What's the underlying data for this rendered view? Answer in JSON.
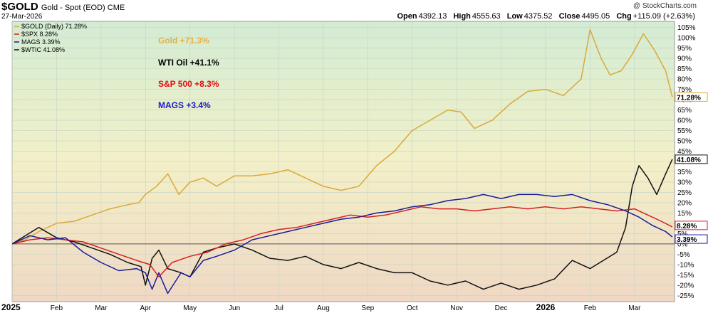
{
  "header": {
    "symbol": "$GOLD",
    "description": "Gold - Spot (EOD)",
    "exchange": "CME",
    "date": "27-Mar-2026",
    "watermark": "@ StockCharts.com",
    "ohlc": {
      "open_label": "Open",
      "open": "4392.13",
      "high_label": "High",
      "high": "4555.63",
      "low_label": "Low",
      "low": "4375.52",
      "close_label": "Close",
      "close": "4495.05",
      "chg_label": "Chg",
      "chg": "+115.09 (+2.63%)"
    }
  },
  "chart_data": {
    "type": "line",
    "ylabel_unit": "%",
    "ylim": [
      -28,
      108
    ],
    "y_ticks": [
      "105%",
      "100%",
      "95%",
      "90%",
      "85%",
      "80%",
      "75%",
      "70%",
      "65%",
      "60%",
      "55%",
      "50%",
      "45%",
      "40%",
      "35%",
      "30%",
      "25%",
      "20%",
      "15%",
      "10%",
      "5%",
      "0%",
      "-5%",
      "-10%",
      "-15%",
      "-20%",
      "-25%"
    ],
    "x_ticks": [
      "2025",
      "Feb",
      "Mar",
      "Apr",
      "May",
      "Jun",
      "Jul",
      "Aug",
      "Sep",
      "Oct",
      "Nov",
      "Dec",
      "2026",
      "Feb",
      "Mar"
    ],
    "x_tick_months": [
      0,
      1,
      2,
      3,
      4,
      5,
      6,
      7,
      8,
      9,
      10,
      11,
      12,
      13,
      14
    ],
    "x_range_months": [
      0,
      14.9
    ],
    "legend": {
      "placement": "top-left",
      "items": [
        {
          "label": "$GOLD (Daily) 71.28%",
          "color": "#d9a93c"
        },
        {
          "label": "$SPX 8.28%",
          "color": "#d62020"
        },
        {
          "label": "MAGS 3.39%",
          "color": "#1a1a9a"
        },
        {
          "label": "$WTIC 41.08%",
          "color": "#111111"
        }
      ]
    },
    "annotations": [
      {
        "text": "Gold +71.3%",
        "color": "#e4b04a"
      },
      {
        "text": "WTI Oil +41.1%",
        "color": "#000000"
      },
      {
        "text": "S&P 500 +8.3%",
        "color": "#e01010"
      },
      {
        "text": "MAGS +3.4%",
        "color": "#1a1acc"
      }
    ],
    "end_labels": [
      {
        "text": "71.28%",
        "value": 71.28,
        "color": "#d9a93c"
      },
      {
        "text": "41.08%",
        "value": 41.08,
        "color": "#111111"
      },
      {
        "text": "8.28%",
        "value": 8.28,
        "color": "#d62020"
      },
      {
        "text": "3.39%",
        "value": 3.39,
        "color": "#1a1a9a"
      }
    ],
    "zero_line": true,
    "grid": true,
    "series": [
      {
        "name": "$GOLD",
        "color": "#d9a93c",
        "x": [
          0,
          0.3,
          0.6,
          1.0,
          1.4,
          1.8,
          2.2,
          2.6,
          2.85,
          3.0,
          3.25,
          3.5,
          3.75,
          4.0,
          4.3,
          4.6,
          5.0,
          5.4,
          5.8,
          6.2,
          6.6,
          7.0,
          7.4,
          7.8,
          8.2,
          8.6,
          9.0,
          9.4,
          9.8,
          10.1,
          10.4,
          10.8,
          11.2,
          11.6,
          12.0,
          12.4,
          12.8,
          13.0,
          13.25,
          13.45,
          13.7,
          13.95,
          14.2,
          14.45,
          14.7,
          14.85
        ],
        "y": [
          0,
          2,
          6,
          10,
          11,
          14,
          17,
          19,
          20,
          24,
          28,
          34,
          24,
          30,
          32,
          28,
          33,
          33,
          34,
          36,
          32,
          28,
          26,
          28,
          38,
          45,
          55,
          60,
          65,
          64,
          56,
          60,
          68,
          74,
          75,
          72,
          80,
          104,
          90,
          82,
          84,
          92,
          102,
          94,
          84,
          71.28
        ]
      },
      {
        "name": "$SPX",
        "color": "#d62020",
        "x": [
          0,
          0.4,
          0.8,
          1.2,
          1.6,
          2.0,
          2.4,
          2.8,
          3.1,
          3.3,
          3.6,
          4.0,
          4.4,
          4.8,
          5.2,
          5.6,
          6.0,
          6.4,
          6.8,
          7.2,
          7.6,
          8.0,
          8.4,
          8.8,
          9.2,
          9.6,
          10.0,
          10.4,
          10.8,
          11.2,
          11.6,
          12.0,
          12.4,
          12.8,
          13.2,
          13.6,
          14.0,
          14.3,
          14.6,
          14.85
        ],
        "y": [
          0,
          2,
          3,
          2,
          1,
          -2,
          -5,
          -8,
          -10,
          -16,
          -9,
          -6,
          -4,
          0,
          2,
          5,
          7,
          8,
          10,
          12,
          14,
          13,
          14,
          16,
          18,
          17,
          17,
          16,
          17,
          18,
          17,
          18,
          17,
          18,
          17,
          16,
          17,
          14,
          11,
          8.28
        ]
      },
      {
        "name": "MAGS",
        "color": "#1a1a9a",
        "x": [
          0,
          0.4,
          0.8,
          1.2,
          1.6,
          2.0,
          2.4,
          2.8,
          3.0,
          3.15,
          3.3,
          3.5,
          3.8,
          4.0,
          4.3,
          4.6,
          5.0,
          5.4,
          5.8,
          6.2,
          6.6,
          7.0,
          7.4,
          7.8,
          8.2,
          8.6,
          9.0,
          9.4,
          9.8,
          10.2,
          10.6,
          11.0,
          11.4,
          11.8,
          12.2,
          12.6,
          13.0,
          13.4,
          13.8,
          14.1,
          14.4,
          14.7,
          14.85
        ],
        "y": [
          0,
          4,
          2,
          3,
          -4,
          -9,
          -13,
          -12,
          -14,
          -22,
          -14,
          -24,
          -14,
          -16,
          -8,
          -6,
          -3,
          2,
          4,
          6,
          8,
          10,
          12,
          13,
          15,
          16,
          18,
          19,
          21,
          22,
          24,
          22,
          24,
          24,
          23,
          24,
          21,
          19,
          16,
          13,
          9,
          6,
          3.39
        ]
      },
      {
        "name": "$WTIC",
        "color": "#111111",
        "x": [
          0,
          0.3,
          0.6,
          1.0,
          1.4,
          1.8,
          2.2,
          2.6,
          2.9,
          3.0,
          3.15,
          3.3,
          3.5,
          3.8,
          4.0,
          4.3,
          4.6,
          5.0,
          5.4,
          5.8,
          6.2,
          6.6,
          7.0,
          7.4,
          7.8,
          8.2,
          8.6,
          9.0,
          9.4,
          9.8,
          10.2,
          10.6,
          11.0,
          11.4,
          11.8,
          12.2,
          12.6,
          13.0,
          13.3,
          13.6,
          13.8,
          13.95,
          14.1,
          14.3,
          14.5,
          14.7,
          14.85
        ],
        "y": [
          0,
          4,
          8,
          3,
          1,
          -2,
          -5,
          -9,
          -11,
          -20,
          -7,
          -3,
          -12,
          -14,
          -16,
          -4,
          -2,
          0,
          -3,
          -7,
          -8,
          -6,
          -10,
          -12,
          -9,
          -12,
          -14,
          -14,
          -18,
          -20,
          -18,
          -22,
          -19,
          -22,
          -20,
          -17,
          -8,
          -12,
          -8,
          -4,
          8,
          28,
          38,
          32,
          24,
          34,
          41.08
        ]
      }
    ]
  }
}
